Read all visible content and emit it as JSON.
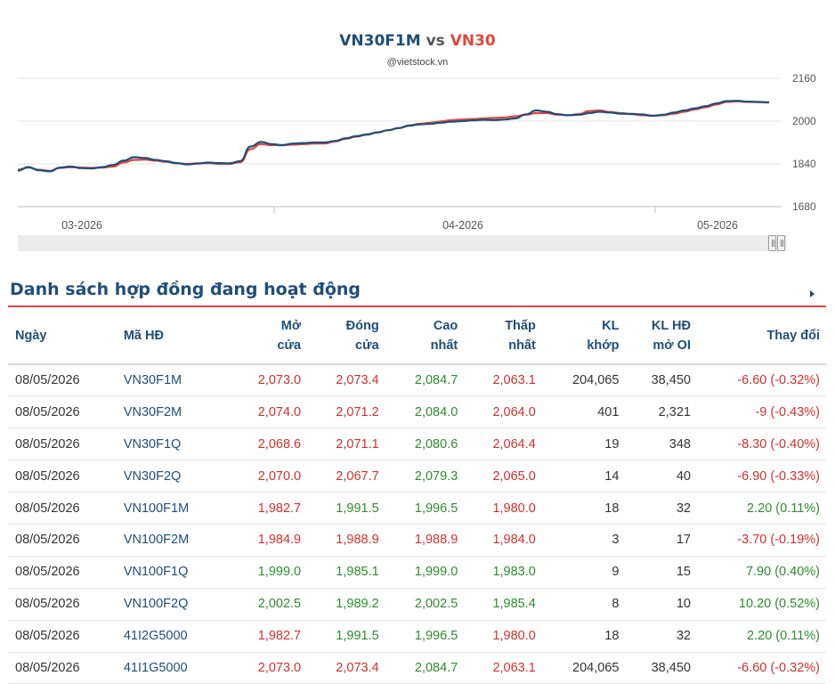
{
  "chart": {
    "title_series1": "VN30F1M",
    "title_vs": "vs",
    "title_series2": "VN30",
    "subtitle": "@vietstock.vn",
    "colors": {
      "series1": "#1f4e79",
      "series2": "#e0473d"
    }
  },
  "chart_data": {
    "type": "line",
    "title": "VN30F1M vs VN30",
    "subtitle": "@vietstock.vn",
    "y_ticks": [
      "2160",
      "2000",
      "1840",
      "1680"
    ],
    "ylim": [
      1680,
      2160
    ],
    "x_ticks": [
      "03-2026",
      "04-2026",
      "05-2026"
    ],
    "grid": true,
    "y_axis_side": "right",
    "series": [
      {
        "name": "VN30F1M",
        "color": "#1f4e79",
        "values": [
          1815,
          1828,
          1816,
          1812,
          1826,
          1830,
          1824,
          1823,
          1828,
          1836,
          1852,
          1865,
          1862,
          1855,
          1850,
          1843,
          1838,
          1841,
          1845,
          1843,
          1842,
          1850,
          1905,
          1922,
          1914,
          1910,
          1916,
          1918,
          1920,
          1920,
          1926,
          1936,
          1944,
          1950,
          1958,
          1966,
          1974,
          1983,
          1988,
          1990,
          1994,
          1998,
          2000,
          2003,
          2005,
          2004,
          2006,
          2010,
          2025,
          2040,
          2035,
          2026,
          2022,
          2024,
          2030,
          2035,
          2032,
          2028,
          2027,
          2025,
          2020,
          2024,
          2032,
          2040,
          2048,
          2056,
          2066,
          2075,
          2076,
          2073,
          2072,
          2070
        ]
      },
      {
        "name": "VN30",
        "color": "#e0473d",
        "values": [
          1818,
          1826,
          1818,
          1814,
          1825,
          1828,
          1826,
          1825,
          1826,
          1830,
          1845,
          1855,
          1856,
          1852,
          1848,
          1842,
          1840,
          1842,
          1843,
          1840,
          1840,
          1846,
          1895,
          1914,
          1910,
          1910,
          1912,
          1914,
          1916,
          1916,
          1924,
          1934,
          1942,
          1950,
          1958,
          1966,
          1974,
          1984,
          1990,
          1994,
          1999,
          2004,
          2006,
          2008,
          2010,
          2012,
          2014,
          2018,
          2024,
          2030,
          2030,
          2024,
          2022,
          2026,
          2038,
          2040,
          2034,
          2030,
          2026,
          2022,
          2020,
          2022,
          2028,
          2035,
          2044,
          2052,
          2062,
          2072,
          2074,
          2072,
          2071,
          2070
        ]
      }
    ]
  },
  "section": {
    "title": "Danh sách hợp đồng đang hoạt động"
  },
  "table": {
    "headers": {
      "date": "Ngày",
      "code": "Mã HĐ",
      "open_1": "Mở",
      "open_2": "cửa",
      "close_1": "Đóng",
      "close_2": "cửa",
      "high_1": "Cao",
      "high_2": "nhất",
      "low_1": "Thấp",
      "low_2": "nhất",
      "vol_1": "KL",
      "vol_2": "khớp",
      "oi_1": "KL HĐ",
      "oi_2": "mở OI",
      "change": "Thay đổi"
    },
    "rows": [
      {
        "date": "08/05/2026",
        "code": "VN30F1M",
        "open": "2,073.0",
        "close": "2,073.4",
        "high": "2,084.7",
        "low": "2,063.1",
        "vol": "204,065",
        "oi": "38,450",
        "change": "-6.60 (-0.32%)",
        "open_dir": "down",
        "close_dir": "down",
        "high_dir": "up",
        "low_dir": "down",
        "change_dir": "down"
      },
      {
        "date": "08/05/2026",
        "code": "VN30F2M",
        "open": "2,074.0",
        "close": "2,071.2",
        "high": "2,084.0",
        "low": "2,064.0",
        "vol": "401",
        "oi": "2,321",
        "change": "-9 (-0.43%)",
        "open_dir": "down",
        "close_dir": "down",
        "high_dir": "up",
        "low_dir": "down",
        "change_dir": "down"
      },
      {
        "date": "08/05/2026",
        "code": "VN30F1Q",
        "open": "2,068.6",
        "close": "2,071.1",
        "high": "2,080.6",
        "low": "2,064.4",
        "vol": "19",
        "oi": "348",
        "change": "-8.30 (-0.40%)",
        "open_dir": "down",
        "close_dir": "down",
        "high_dir": "up",
        "low_dir": "down",
        "change_dir": "down"
      },
      {
        "date": "08/05/2026",
        "code": "VN30F2Q",
        "open": "2,070.0",
        "close": "2,067.7",
        "high": "2,079.3",
        "low": "2,065.0",
        "vol": "14",
        "oi": "40",
        "change": "-6.90 (-0.33%)",
        "open_dir": "down",
        "close_dir": "down",
        "high_dir": "up",
        "low_dir": "down",
        "change_dir": "down"
      },
      {
        "date": "08/05/2026",
        "code": "VN100F1M",
        "open": "1,982.7",
        "close": "1,991.5",
        "high": "1,996.5",
        "low": "1,980.0",
        "vol": "18",
        "oi": "32",
        "change": "2.20 (0.11%)",
        "open_dir": "down",
        "close_dir": "up",
        "high_dir": "up",
        "low_dir": "down",
        "change_dir": "up"
      },
      {
        "date": "08/05/2026",
        "code": "VN100F2M",
        "open": "1,984.9",
        "close": "1,988.9",
        "high": "1,988.9",
        "low": "1,984.0",
        "vol": "3",
        "oi": "17",
        "change": "-3.70 (-0.19%)",
        "open_dir": "down",
        "close_dir": "down",
        "high_dir": "down",
        "low_dir": "down",
        "change_dir": "down"
      },
      {
        "date": "08/05/2026",
        "code": "VN100F1Q",
        "open": "1,999.0",
        "close": "1,985.1",
        "high": "1,999.0",
        "low": "1,983.0",
        "vol": "9",
        "oi": "15",
        "change": "7.90 (0.40%)",
        "open_dir": "up",
        "close_dir": "up",
        "high_dir": "up",
        "low_dir": "up",
        "change_dir": "up"
      },
      {
        "date": "08/05/2026",
        "code": "VN100F2Q",
        "open": "2,002.5",
        "close": "1,989.2",
        "high": "2,002.5",
        "low": "1,985.4",
        "vol": "8",
        "oi": "10",
        "change": "10.20 (0.52%)",
        "open_dir": "up",
        "close_dir": "up",
        "high_dir": "up",
        "low_dir": "up",
        "change_dir": "up"
      },
      {
        "date": "08/05/2026",
        "code": "41I2G5000",
        "open": "1,982.7",
        "close": "1,991.5",
        "high": "1,996.5",
        "low": "1,980.0",
        "vol": "18",
        "oi": "32",
        "change": "2.20 (0.11%)",
        "open_dir": "down",
        "close_dir": "up",
        "high_dir": "up",
        "low_dir": "down",
        "change_dir": "up"
      },
      {
        "date": "08/05/2026",
        "code": "41I1G5000",
        "open": "2,073.0",
        "close": "2,073.4",
        "high": "2,084.7",
        "low": "2,063.1",
        "vol": "204,065",
        "oi": "38,450",
        "change": "-6.60 (-0.32%)",
        "open_dir": "down",
        "close_dir": "down",
        "high_dir": "up",
        "low_dir": "down",
        "change_dir": "down"
      }
    ]
  }
}
